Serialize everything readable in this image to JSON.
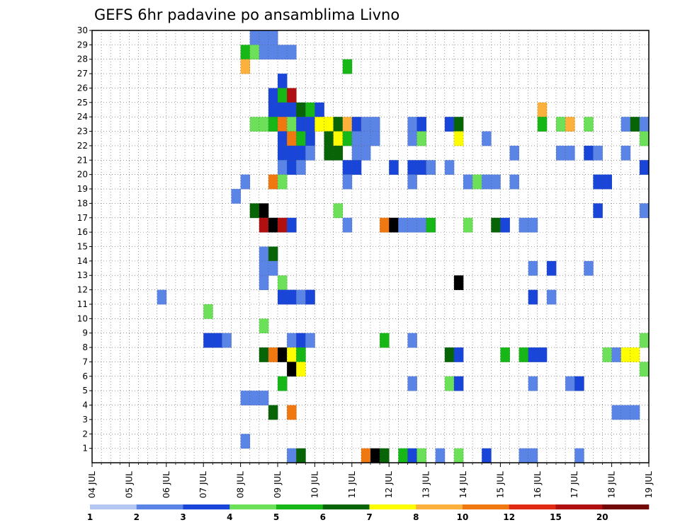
{
  "chart_data": {
    "type": "heatmap",
    "title": "GEFS 6hr padavine po ansamblima Livno",
    "xlabel": "",
    "ylabel": "",
    "x_tick_labels": [
      "04 JUL",
      "05 JUL",
      "06 JUL",
      "07 JUL",
      "08 JUL",
      "09 JUL",
      "10 JUL",
      "11 JUL",
      "12 JUL",
      "13 JUL",
      "14 JUL",
      "15 JUL",
      "16 JUL",
      "17 JUL",
      "18 JUL",
      "19 JUL"
    ],
    "y_tick_labels": [
      "1",
      "2",
      "3",
      "4",
      "5",
      "6",
      "7",
      "8",
      "9",
      "10",
      "11",
      "12",
      "13",
      "14",
      "15",
      "16",
      "17",
      "18",
      "19",
      "20",
      "21",
      "22",
      "23",
      "24",
      "25",
      "26",
      "27",
      "28",
      "29",
      "30"
    ],
    "x_range": [
      0,
      60
    ],
    "y_range": [
      0,
      30
    ],
    "grid": true,
    "colorbar": {
      "labels": [
        "1",
        "2",
        "3",
        "4",
        "5",
        "6",
        "7",
        "8",
        "10",
        "12",
        "15",
        "20"
      ],
      "colors": [
        "#b4c6f2",
        "#5a84e6",
        "#1946d9",
        "#6de05a",
        "#16b716",
        "#076407",
        "#fefe00",
        "#fbb13b",
        "#f07810",
        "#e12a13",
        "#b01010",
        "#730808"
      ]
    },
    "cell_value_units": "mm per 6 hr",
    "cells": [
      [
        17,
        29,
        1
      ],
      [
        18,
        29,
        1
      ],
      [
        19,
        29,
        1
      ],
      [
        19,
        29,
        1
      ],
      [
        16,
        28,
        4
      ],
      [
        17,
        28,
        3
      ],
      [
        18,
        28,
        1
      ],
      [
        19,
        28,
        1
      ],
      [
        20,
        28,
        1
      ],
      [
        21,
        28,
        1
      ],
      [
        16,
        27,
        7
      ],
      [
        27,
        27,
        4
      ],
      [
        20,
        26,
        2
      ],
      [
        19,
        25,
        2
      ],
      [
        20,
        25,
        4
      ],
      [
        21,
        25,
        10
      ],
      [
        19,
        24,
        2
      ],
      [
        20,
        24,
        2
      ],
      [
        21,
        24,
        2
      ],
      [
        22,
        24,
        5
      ],
      [
        23,
        24,
        4
      ],
      [
        24,
        24,
        2
      ],
      [
        48,
        24,
        7
      ],
      [
        17,
        23,
        3
      ],
      [
        18,
        23,
        3
      ],
      [
        19,
        23,
        4
      ],
      [
        20,
        23,
        8
      ],
      [
        21,
        23,
        3
      ],
      [
        22,
        23,
        2
      ],
      [
        23,
        23,
        2
      ],
      [
        24,
        23,
        6
      ],
      [
        25,
        23,
        6
      ],
      [
        26,
        23,
        5
      ],
      [
        27,
        23,
        7
      ],
      [
        28,
        23,
        2
      ],
      [
        29,
        23,
        1
      ],
      [
        30,
        23,
        1
      ],
      [
        34,
        23,
        1
      ],
      [
        35,
        23,
        2
      ],
      [
        38,
        23,
        2
      ],
      [
        39,
        23,
        5
      ],
      [
        48,
        23,
        4
      ],
      [
        50,
        23,
        3
      ],
      [
        51,
        23,
        7
      ],
      [
        53,
        23,
        3
      ],
      [
        57,
        23,
        1
      ],
      [
        58,
        23,
        5
      ],
      [
        59,
        23,
        1
      ],
      [
        20,
        22,
        2
      ],
      [
        21,
        22,
        8
      ],
      [
        22,
        22,
        4
      ],
      [
        23,
        22,
        2
      ],
      [
        25,
        22,
        5
      ],
      [
        26,
        22,
        6
      ],
      [
        27,
        22,
        4
      ],
      [
        28,
        22,
        1
      ],
      [
        29,
        22,
        1
      ],
      [
        30,
        22,
        1
      ],
      [
        34,
        22,
        1
      ],
      [
        35,
        22,
        3
      ],
      [
        39,
        22,
        6
      ],
      [
        42,
        22,
        1
      ],
      [
        59,
        22,
        3
      ],
      [
        20,
        21,
        2
      ],
      [
        21,
        21,
        2
      ],
      [
        22,
        21,
        2
      ],
      [
        23,
        21,
        1
      ],
      [
        25,
        21,
        5
      ],
      [
        26,
        21,
        5
      ],
      [
        28,
        21,
        1
      ],
      [
        29,
        21,
        1
      ],
      [
        45,
        21,
        1
      ],
      [
        50,
        21,
        1
      ],
      [
        51,
        21,
        1
      ],
      [
        53,
        21,
        2
      ],
      [
        54,
        21,
        1
      ],
      [
        57,
        21,
        1
      ],
      [
        20,
        20,
        1
      ],
      [
        21,
        20,
        2
      ],
      [
        22,
        20,
        1
      ],
      [
        27,
        20,
        2
      ],
      [
        28,
        20,
        2
      ],
      [
        32,
        20,
        2
      ],
      [
        34,
        20,
        2
      ],
      [
        35,
        20,
        2
      ],
      [
        36,
        20,
        1
      ],
      [
        38,
        20,
        1
      ],
      [
        59,
        20,
        2
      ],
      [
        16,
        19,
        1
      ],
      [
        19,
        19,
        8
      ],
      [
        20,
        19,
        3
      ],
      [
        27,
        19,
        1
      ],
      [
        34,
        19,
        1
      ],
      [
        40,
        19,
        1
      ],
      [
        41,
        19,
        3
      ],
      [
        42,
        19,
        1
      ],
      [
        43,
        19,
        1
      ],
      [
        45,
        19,
        1
      ],
      [
        54,
        19,
        2
      ],
      [
        55,
        19,
        2
      ],
      [
        15,
        18,
        1
      ],
      [
        17,
        17,
        5
      ],
      [
        18,
        17,
        12
      ],
      [
        26,
        17,
        3
      ],
      [
        54,
        17,
        2
      ],
      [
        59,
        17,
        1
      ],
      [
        18,
        16,
        10
      ],
      [
        19,
        16,
        20
      ],
      [
        20,
        16,
        10
      ],
      [
        21,
        16,
        2
      ],
      [
        27,
        16,
        1
      ],
      [
        31,
        16,
        8
      ],
      [
        32,
        16,
        20
      ],
      [
        33,
        16,
        1
      ],
      [
        34,
        16,
        1
      ],
      [
        35,
        16,
        1
      ],
      [
        36,
        16,
        4
      ],
      [
        40,
        16,
        3
      ],
      [
        43,
        16,
        5
      ],
      [
        44,
        16,
        2
      ],
      [
        46,
        16,
        1
      ],
      [
        47,
        16,
        1
      ],
      [
        18,
        14,
        1
      ],
      [
        19,
        14,
        5
      ],
      [
        18,
        13,
        1
      ],
      [
        19,
        13,
        1
      ],
      [
        47,
        13,
        1
      ],
      [
        49,
        13,
        2
      ],
      [
        53,
        13,
        1
      ],
      [
        18,
        12,
        1
      ],
      [
        20,
        12,
        3
      ],
      [
        39,
        12,
        12
      ],
      [
        7,
        11,
        1
      ],
      [
        20,
        11,
        2
      ],
      [
        21,
        11,
        2
      ],
      [
        22,
        11,
        1
      ],
      [
        23,
        11,
        2
      ],
      [
        47,
        11,
        2
      ],
      [
        49,
        11,
        1
      ],
      [
        12,
        10,
        3
      ],
      [
        18,
        9,
        3
      ],
      [
        12,
        8,
        2
      ],
      [
        13,
        8,
        2
      ],
      [
        14,
        8,
        1
      ],
      [
        21,
        8,
        1
      ],
      [
        22,
        8,
        2
      ],
      [
        23,
        8,
        1
      ],
      [
        31,
        8,
        4
      ],
      [
        34,
        8,
        1
      ],
      [
        59,
        8,
        3
      ],
      [
        18,
        7,
        5
      ],
      [
        19,
        7,
        8
      ],
      [
        20,
        7,
        20
      ],
      [
        21,
        7,
        6
      ],
      [
        22,
        7,
        4
      ],
      [
        38,
        7,
        5
      ],
      [
        39,
        7,
        2
      ],
      [
        44,
        7,
        4
      ],
      [
        46,
        7,
        4
      ],
      [
        47,
        7,
        2
      ],
      [
        48,
        7,
        2
      ],
      [
        55,
        7,
        3
      ],
      [
        56,
        7,
        1
      ],
      [
        57,
        7,
        6
      ],
      [
        58,
        7,
        6
      ],
      [
        21,
        6,
        12
      ],
      [
        22,
        6,
        6
      ],
      [
        59,
        6,
        3
      ],
      [
        20,
        5,
        4
      ],
      [
        34,
        5,
        1
      ],
      [
        38,
        5,
        3
      ],
      [
        39,
        5,
        2
      ],
      [
        47,
        5,
        1
      ],
      [
        51,
        5,
        1
      ],
      [
        52,
        5,
        2
      ],
      [
        16,
        4,
        1
      ],
      [
        17,
        4,
        1
      ],
      [
        18,
        4,
        1
      ],
      [
        19,
        3,
        5
      ],
      [
        21,
        3,
        8
      ],
      [
        56,
        3,
        1
      ],
      [
        57,
        3,
        1
      ],
      [
        58,
        3,
        1
      ],
      [
        16,
        1,
        1
      ],
      [
        21,
        0,
        1
      ],
      [
        22,
        0,
        5
      ],
      [
        29,
        0,
        8
      ],
      [
        30,
        0,
        12
      ],
      [
        31,
        0,
        5
      ],
      [
        33,
        0,
        4
      ],
      [
        34,
        0,
        2
      ],
      [
        35,
        0,
        3
      ],
      [
        37,
        0,
        1
      ],
      [
        39,
        0,
        3
      ],
      [
        42,
        0,
        2
      ],
      [
        46,
        0,
        1
      ],
      [
        47,
        0,
        1
      ],
      [
        52,
        0,
        1
      ]
    ]
  }
}
